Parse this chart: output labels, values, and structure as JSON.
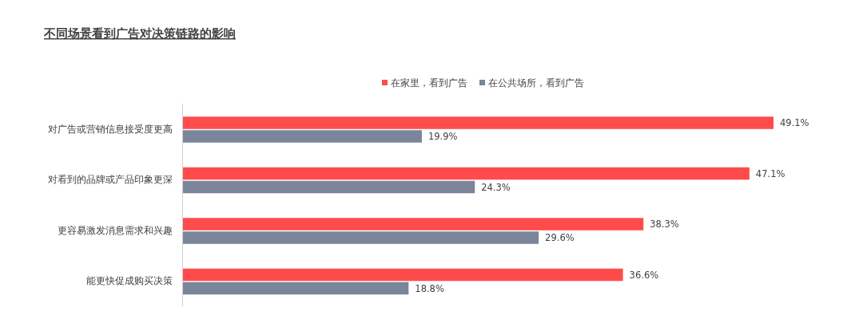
{
  "chart_data": {
    "type": "bar",
    "orientation": "horizontal",
    "title": "不同场景看到广告对决策链路的影响",
    "categories": [
      "对广告或营销信息接受度更高",
      "对看到的品牌或产品印象更深",
      "更容易激发消息需求和兴趣",
      "能更快促成购买决策"
    ],
    "series": [
      {
        "name": "在家里，看到广告",
        "color": "#ff4b4b",
        "values": [
          49.1,
          47.1,
          38.3,
          36.6
        ],
        "value_labels": [
          "49.1%",
          "47.1%",
          "38.3%",
          "36.6%"
        ]
      },
      {
        "name": "在公共场所，看到广告",
        "color": "#7a8599",
        "values": [
          19.9,
          24.3,
          29.6,
          18.8
        ],
        "value_labels": [
          "19.9%",
          "24.3%",
          "29.6%",
          "18.8%"
        ]
      }
    ],
    "legend": "top"
  }
}
